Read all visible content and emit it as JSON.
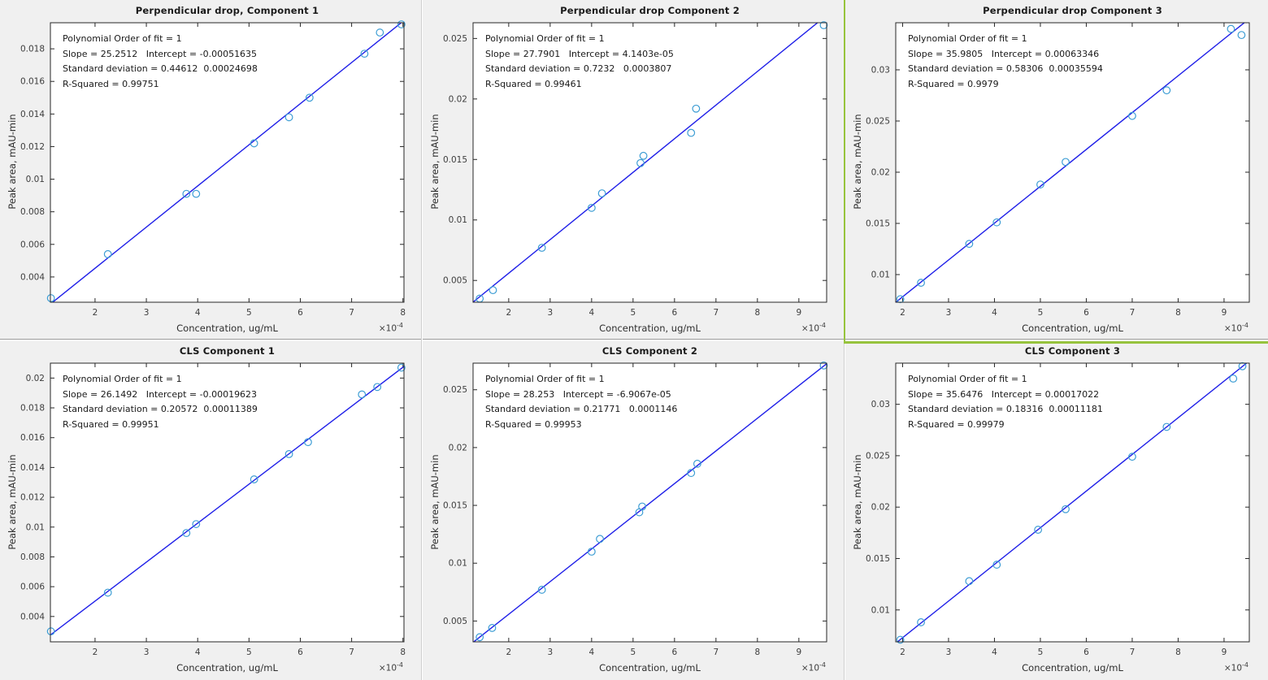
{
  "figure": {
    "background": "#F0F0F0",
    "line_color": "#1F1FE8",
    "marker_color": "#3D9DD4",
    "axis_color": "#262626",
    "tick_label_color": "#3d3d3d",
    "highlight_color": "#97C33D",
    "xlabel": "Concentration,  ug/mL",
    "ylabel": "Peak area, mAU-min",
    "multiplier_base": "×10",
    "multiplier_exp": "-4"
  },
  "chart_data": [
    {
      "type": "scatter",
      "title": "Perpendicular drop, Component 1",
      "annotation": [
        "Polynomial Order of fit = 1",
        "Slope = 25.2512   Intercept = -0.00051635",
        "Standard deviation = 0.44612  0.00024698",
        "R-Squared = 0.99751"
      ],
      "fit": {
        "slope": 25.2512,
        "intercept": -0.00051635,
        "r_squared": 0.99751
      },
      "xlabel": "Concentration,  ug/mL",
      "ylabel": "Peak area, mAU-min",
      "x_multiplier": 0.0001,
      "xlim": [
        1.13,
        8.02
      ],
      "ylim": [
        0.00245,
        0.0196
      ],
      "xticks": [
        [
          2,
          "2"
        ],
        [
          3,
          "3"
        ],
        [
          4,
          "4"
        ],
        [
          5,
          "5"
        ],
        [
          6,
          "6"
        ],
        [
          7,
          "7"
        ],
        [
          8,
          "8"
        ]
      ],
      "yticks": [
        [
          0.004,
          "0.004"
        ],
        [
          0.006,
          "0.006"
        ],
        [
          0.008,
          "0.008"
        ],
        [
          0.01,
          "0.01"
        ],
        [
          0.012,
          "0.012"
        ],
        [
          0.014,
          "0.014"
        ],
        [
          0.016,
          "0.016"
        ],
        [
          0.018,
          "0.018"
        ]
      ],
      "points": [
        [
          1.14,
          0.0027
        ],
        [
          2.25,
          0.0054
        ],
        [
          3.78,
          0.0091
        ],
        [
          3.97,
          0.0091
        ],
        [
          5.1,
          0.0122
        ],
        [
          5.78,
          0.0138
        ],
        [
          6.18,
          0.015
        ],
        [
          7.25,
          0.0177
        ],
        [
          7.55,
          0.019
        ],
        [
          7.97,
          0.0195
        ]
      ]
    },
    {
      "type": "scatter",
      "title": "Perpendicular drop Component 2",
      "annotation": [
        "Polynomial Order of fit = 1",
        "Slope = 27.7901   Intercept = 4.1403e-05",
        "Standard deviation = 0.7232   0.0003807",
        "R-Squared = 0.99461"
      ],
      "fit": {
        "slope": 27.7901,
        "intercept": 4.1403e-05,
        "r_squared": 0.99461
      },
      "xlabel": "Concentration,  ug/mL",
      "ylabel": "Peak area, mAU-min",
      "x_multiplier": 0.0001,
      "xlim": [
        1.14,
        9.67
      ],
      "ylim": [
        0.0032,
        0.0263
      ],
      "xticks": [
        [
          2,
          "2"
        ],
        [
          3,
          "3"
        ],
        [
          4,
          "4"
        ],
        [
          5,
          "5"
        ],
        [
          6,
          "6"
        ],
        [
          7,
          "7"
        ],
        [
          8,
          "8"
        ],
        [
          9,
          "9"
        ]
      ],
      "yticks": [
        [
          0.005,
          "0.005"
        ],
        [
          0.01,
          "0.01"
        ],
        [
          0.015,
          "0.015"
        ],
        [
          0.02,
          "0.02"
        ],
        [
          0.025,
          "0.025"
        ]
      ],
      "points": [
        [
          1.3,
          0.0035
        ],
        [
          1.62,
          0.0042
        ],
        [
          2.8,
          0.0077
        ],
        [
          4.0,
          0.011
        ],
        [
          4.25,
          0.0122
        ],
        [
          5.18,
          0.0147
        ],
        [
          5.25,
          0.0153
        ],
        [
          6.4,
          0.0172
        ],
        [
          6.52,
          0.0192
        ],
        [
          9.6,
          0.0261
        ]
      ]
    },
    {
      "type": "scatter",
      "title": "Perpendicular drop Component 3",
      "annotation": [
        "Polynomial Order of fit = 1",
        "Slope = 35.9805   Intercept = 0.00063346",
        "Standard deviation = 0.58306  0.00035594",
        "R-Squared = 0.9979"
      ],
      "fit": {
        "slope": 35.9805,
        "intercept": 0.00063346,
        "r_squared": 0.9979
      },
      "xlabel": "Concentration,  ug/mL",
      "ylabel": "Peak area, mAU-min",
      "x_multiplier": 0.0001,
      "xlim": [
        1.85,
        9.55
      ],
      "ylim": [
        0.0073,
        0.0346
      ],
      "xticks": [
        [
          2,
          "2"
        ],
        [
          3,
          "3"
        ],
        [
          4,
          "4"
        ],
        [
          5,
          "5"
        ],
        [
          6,
          "6"
        ],
        [
          7,
          "7"
        ],
        [
          8,
          "8"
        ],
        [
          9,
          "9"
        ]
      ],
      "yticks": [
        [
          0.01,
          "0.01"
        ],
        [
          0.015,
          "0.015"
        ],
        [
          0.02,
          "0.02"
        ],
        [
          0.025,
          "0.025"
        ],
        [
          0.03,
          "0.03"
        ]
      ],
      "points": [
        [
          1.95,
          0.0076
        ],
        [
          2.4,
          0.0092
        ],
        [
          3.45,
          0.013
        ],
        [
          4.05,
          0.0151
        ],
        [
          5.0,
          0.0188
        ],
        [
          5.55,
          0.021
        ],
        [
          7.0,
          0.0255
        ],
        [
          7.75,
          0.028
        ],
        [
          9.15,
          0.034
        ],
        [
          9.38,
          0.0334
        ]
      ],
      "selected": true
    },
    {
      "type": "scatter",
      "title": "CLS Component 1",
      "annotation": [
        "Polynomial Order of fit = 1",
        "Slope = 26.1492   Intercept = -0.00019623",
        "Standard deviation = 0.20572  0.00011389",
        "R-Squared = 0.99951"
      ],
      "fit": {
        "slope": 26.1492,
        "intercept": -0.00019623,
        "r_squared": 0.99951
      },
      "xlabel": "Concentration,  ug/mL",
      "ylabel": "Peak area, mAU-min",
      "x_multiplier": 0.0001,
      "xlim": [
        1.13,
        8.02
      ],
      "ylim": [
        0.0023,
        0.021
      ],
      "xticks": [
        [
          2,
          "2"
        ],
        [
          3,
          "3"
        ],
        [
          4,
          "4"
        ],
        [
          5,
          "5"
        ],
        [
          6,
          "6"
        ],
        [
          7,
          "7"
        ],
        [
          8,
          "8"
        ]
      ],
      "yticks": [
        [
          0.004,
          "0.004"
        ],
        [
          0.006,
          "0.006"
        ],
        [
          0.008,
          "0.008"
        ],
        [
          0.01,
          "0.01"
        ],
        [
          0.012,
          "0.012"
        ],
        [
          0.014,
          "0.014"
        ],
        [
          0.016,
          "0.016"
        ],
        [
          0.018,
          "0.018"
        ],
        [
          0.02,
          "0.02"
        ]
      ],
      "points": [
        [
          1.14,
          0.003
        ],
        [
          2.25,
          0.0056
        ],
        [
          3.78,
          0.0096
        ],
        [
          3.97,
          0.0102
        ],
        [
          5.1,
          0.0132
        ],
        [
          5.78,
          0.0149
        ],
        [
          6.15,
          0.0157
        ],
        [
          7.2,
          0.0189
        ],
        [
          7.5,
          0.0194
        ],
        [
          7.97,
          0.0207
        ]
      ]
    },
    {
      "type": "scatter",
      "title": "CLS Component 2",
      "annotation": [
        "Polynomial Order of fit = 1",
        "Slope = 28.253   Intercept = -6.9067e-05",
        "Standard deviation = 0.21771   0.0001146",
        "R-Squared = 0.99953"
      ],
      "fit": {
        "slope": 28.253,
        "intercept": -6.9067e-05,
        "r_squared": 0.99953
      },
      "xlabel": "Concentration,  ug/mL",
      "ylabel": "Peak area, mAU-min",
      "x_multiplier": 0.0001,
      "xlim": [
        1.14,
        9.67
      ],
      "ylim": [
        0.0032,
        0.0273
      ],
      "xticks": [
        [
          2,
          "2"
        ],
        [
          3,
          "3"
        ],
        [
          4,
          "4"
        ],
        [
          5,
          "5"
        ],
        [
          6,
          "6"
        ],
        [
          7,
          "7"
        ],
        [
          8,
          "8"
        ],
        [
          9,
          "9"
        ]
      ],
      "yticks": [
        [
          0.005,
          "0.005"
        ],
        [
          0.01,
          "0.01"
        ],
        [
          0.015,
          "0.015"
        ],
        [
          0.02,
          "0.02"
        ],
        [
          0.025,
          "0.025"
        ]
      ],
      "points": [
        [
          1.3,
          0.0036
        ],
        [
          1.6,
          0.0044
        ],
        [
          2.8,
          0.0077
        ],
        [
          4.0,
          0.011
        ],
        [
          4.2,
          0.0121
        ],
        [
          5.15,
          0.0144
        ],
        [
          5.22,
          0.0149
        ],
        [
          6.4,
          0.0178
        ],
        [
          6.55,
          0.0186
        ],
        [
          9.6,
          0.0271
        ]
      ]
    },
    {
      "type": "scatter",
      "title": "CLS Component 3",
      "annotation": [
        "Polynomial Order of fit = 1",
        "Slope = 35.6476   Intercept = 0.00017022",
        "Standard deviation = 0.18316  0.00011181",
        "R-Squared = 0.99979"
      ],
      "fit": {
        "slope": 35.6476,
        "intercept": 0.00017022,
        "r_squared": 0.99979
      },
      "xlabel": "Concentration,  ug/mL",
      "ylabel": "Peak area, mAU-min",
      "x_multiplier": 0.0001,
      "xlim": [
        1.85,
        9.55
      ],
      "ylim": [
        0.0069,
        0.034
      ],
      "xticks": [
        [
          2,
          "2"
        ],
        [
          3,
          "3"
        ],
        [
          4,
          "4"
        ],
        [
          5,
          "5"
        ],
        [
          6,
          "6"
        ],
        [
          7,
          "7"
        ],
        [
          8,
          "8"
        ],
        [
          9,
          "9"
        ]
      ],
      "yticks": [
        [
          0.01,
          "0.01"
        ],
        [
          0.015,
          "0.015"
        ],
        [
          0.02,
          "0.02"
        ],
        [
          0.025,
          "0.025"
        ],
        [
          0.03,
          "0.03"
        ]
      ],
      "points": [
        [
          1.95,
          0.0071
        ],
        [
          2.4,
          0.0088
        ],
        [
          3.45,
          0.0128
        ],
        [
          4.05,
          0.0144
        ],
        [
          4.95,
          0.0178
        ],
        [
          5.55,
          0.0198
        ],
        [
          7.0,
          0.0249
        ],
        [
          7.75,
          0.0278
        ],
        [
          9.2,
          0.0325
        ],
        [
          9.4,
          0.0337
        ]
      ]
    }
  ]
}
